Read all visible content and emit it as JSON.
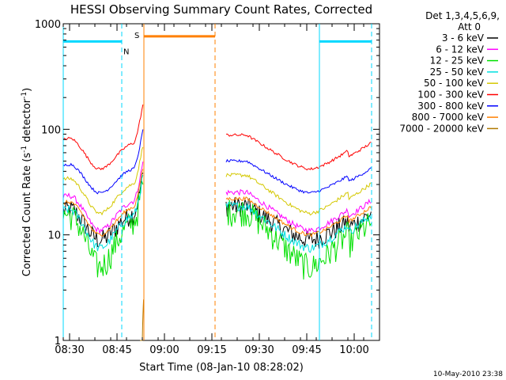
{
  "chart_data": {
    "type": "line",
    "title": "HESSI Observing Summary Count Rates, Corrected",
    "xlabel": "Start Time (08-Jan-10 08:28:02)",
    "ylabel_main": "Corrected Count Rate (s",
    "ylabel_sup1": "-1",
    "ylabel_mid": " detector",
    "ylabel_sup2": "-1",
    "ylabel_end": ")",
    "y_scale": "log",
    "ylim": [
      1,
      1000
    ],
    "x_range_minutes": [
      0,
      100
    ],
    "x_ticks": [
      {
        "label": "08:30",
        "min": 2
      },
      {
        "label": "08:45",
        "min": 17
      },
      {
        "label": "09:00",
        "min": 32
      },
      {
        "label": "09:15",
        "min": 47
      },
      {
        "label": "09:30",
        "min": 62
      },
      {
        "label": "09:45",
        "min": 77
      },
      {
        "label": "10:00",
        "min": 92
      }
    ],
    "y_ticks": [
      {
        "label": "1",
        "value": 1
      },
      {
        "label": "10",
        "value": 10
      },
      {
        "label": "100",
        "value": 100
      },
      {
        "label": "1000",
        "value": 1000
      }
    ],
    "legend": {
      "header1": "Det 1,3,4,5,6,9,",
      "header2": "Att 0",
      "position": "right"
    },
    "series": [
      {
        "name": "3 - 6 keV",
        "color": "#000000",
        "mid": 9,
        "amp": 2.1,
        "noise": 0.22
      },
      {
        "name": "6 - 12 keV",
        "color": "#ff00ff",
        "mid": 11,
        "amp": 2.3,
        "noise": 0.06
      },
      {
        "name": "12 - 25 keV",
        "color": "#00e000",
        "mid": 5,
        "amp": 3.4,
        "noise": 0.3
      },
      {
        "name": "25 - 50 keV",
        "color": "#00e0e0",
        "mid": 7.5,
        "amp": 2.5,
        "noise": 0.1
      },
      {
        "name": "50 - 100 keV",
        "color": "#d4c800",
        "mid": 16,
        "amp": 2.3,
        "noise": 0.04
      },
      {
        "name": "100 - 300 keV",
        "color": "#ff0000",
        "mid": 42,
        "amp": 2.1,
        "noise": 0.03
      },
      {
        "name": "300 - 800 keV",
        "color": "#0000ff",
        "mid": 25,
        "amp": 2.0,
        "noise": 0.03
      },
      {
        "name": "800 - 7000 keV",
        "color": "#ff8000",
        "mid": 10,
        "amp": 2.2,
        "noise": 0.04
      },
      {
        "name": "7000 - 20000 keV",
        "color": "#b07800",
        "mid": 0.5,
        "amp": 1,
        "noise": 0
      }
    ],
    "intervals": [
      {
        "label": "N",
        "color": "#00d8ff",
        "start_min": 0,
        "end_min": 18.5,
        "level": 680
      },
      {
        "label": "S",
        "color": "#ff8000",
        "start_min": 25.5,
        "end_min": 48,
        "level": 760
      },
      {
        "label": "",
        "color": "#00d8ff",
        "start_min": 81,
        "end_min": 97.5,
        "level": 680
      }
    ],
    "data_windows": [
      [
        0,
        25.5
      ],
      [
        51.5,
        97.5
      ]
    ],
    "footer": "10-May-2010 23:38"
  }
}
